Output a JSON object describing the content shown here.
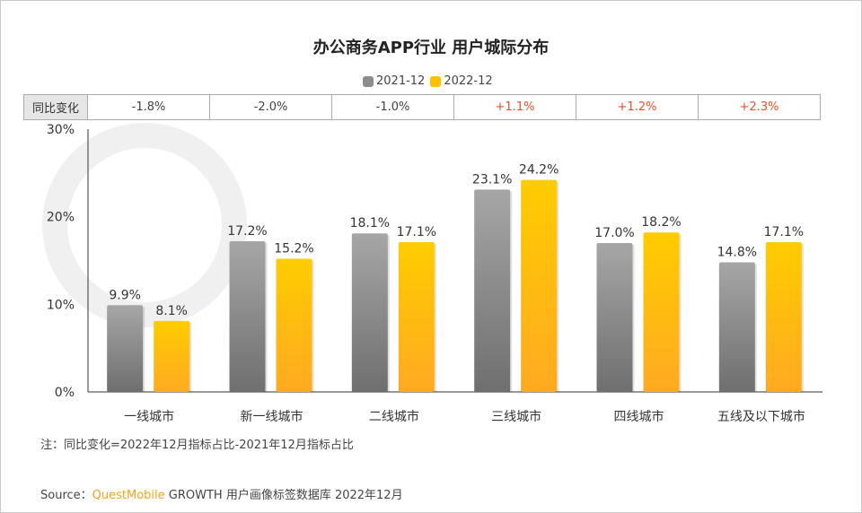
{
  "title": "办公商务APP行业 用户城际分布",
  "legend": [
    {
      "label": "2021-12",
      "color": "#8c8c8c"
    },
    {
      "label": "2022-12",
      "color": "#ffc000"
    }
  ],
  "yoy_table": {
    "header": "同比变化",
    "values": [
      "-1.8%",
      "-2.0%",
      "-1.0%",
      "+1.1%",
      "+1.2%",
      "+2.3%"
    ],
    "colors": {
      "negative": "#444444",
      "positive": "#f0502a"
    }
  },
  "chart_data": {
    "type": "bar",
    "categories": [
      "一线城市",
      "新一线城市",
      "二线城市",
      "三线城市",
      "四线城市",
      "五线及以下城市"
    ],
    "series": [
      {
        "name": "2021-12",
        "values": [
          9.9,
          17.2,
          18.1,
          23.1,
          17.0,
          14.8
        ],
        "labels": [
          "9.9%",
          "17.2%",
          "18.1%",
          "23.1%",
          "17.0%",
          "14.8%"
        ]
      },
      {
        "name": "2022-12",
        "values": [
          8.1,
          15.2,
          17.1,
          24.2,
          18.2,
          17.1
        ],
        "labels": [
          "8.1%",
          "15.2%",
          "17.1%",
          "24.2%",
          "18.2%",
          "17.1%"
        ]
      }
    ],
    "ylim": [
      0,
      30
    ],
    "yticks": [
      "0%",
      "10%",
      "20%",
      "30%"
    ],
    "grid": false
  },
  "note": "注：同比变化=2022年12月指标占比-2021年12月指标占比",
  "source": {
    "prefix": "Source：",
    "brand": "QuestMobile",
    "rest": " GROWTH 用户画像标签数据库 2022年12月"
  }
}
